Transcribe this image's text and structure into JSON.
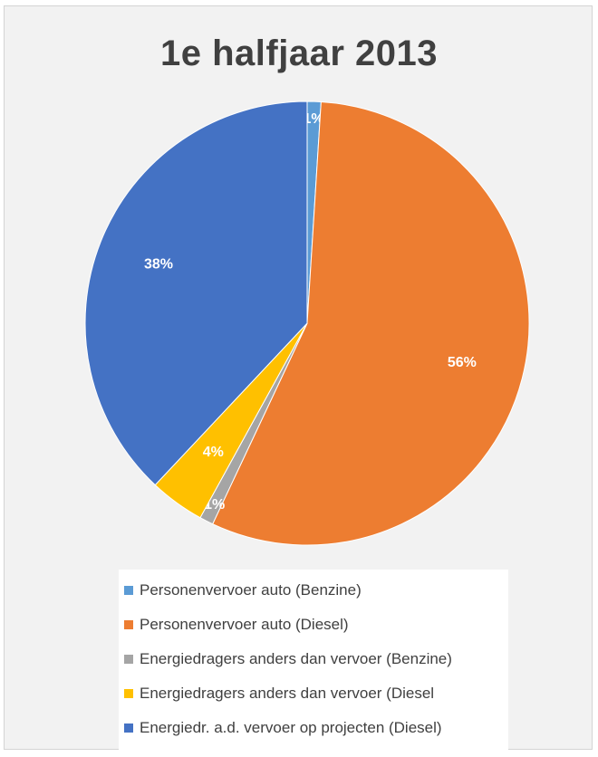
{
  "chart_data": {
    "type": "pie",
    "title": "1e halfjaar 2013",
    "start_angle_deg": 0,
    "direction": "clockwise",
    "slices": [
      {
        "label": "Personenvervoer auto (Benzine)",
        "value": 1,
        "display": "1%",
        "color": "#5b9bd5"
      },
      {
        "label": "Personenvervoer auto (Diesel)",
        "value": 56,
        "display": "56%",
        "color": "#ed7d31"
      },
      {
        "label": "Energiedragers anders dan vervoer (Benzine)",
        "value": 1,
        "display": "1%",
        "color": "#a5a5a5"
      },
      {
        "label": "Energiedragers anders dan vervoer (Diesel",
        "value": 4,
        "display": "4%",
        "color": "#ffc000"
      },
      {
        "label": "Energiedr. a.d. vervoer op projecten (Diesel)",
        "value": 38,
        "display": "38%",
        "color": "#4472c4"
      }
    ],
    "legend_position": "bottom"
  }
}
